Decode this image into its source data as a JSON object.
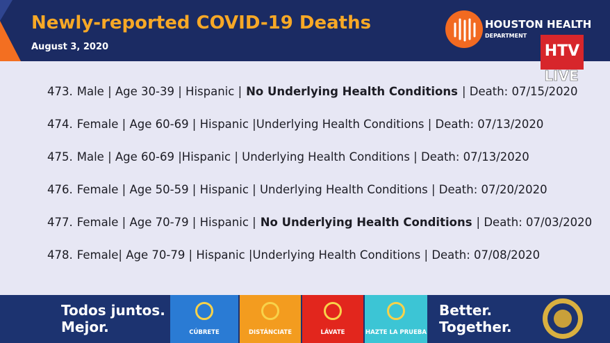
{
  "header": {
    "title": "Newly-reported COVID-19 Deaths",
    "date": "August 3, 2020",
    "logo": {
      "name": "HOUSTON HEALTH",
      "subname": "DEPARTMENT"
    },
    "broadcast": {
      "channel": "HTV",
      "status": "LIVE"
    }
  },
  "rows": [
    {
      "number": "473.",
      "segments": [
        {
          "text": "Male | Age 30-39 | Hispanic |"
        },
        {
          "text": "No Underlying Health Conditions",
          "bold": true
        },
        {
          "text": "| Death: 07/15/2020"
        }
      ]
    },
    {
      "number": "474.",
      "segments": [
        {
          "text": "Female | Age 60-69 | Hispanic |Underlying Health Conditions | Death: 07/13/2020"
        }
      ]
    },
    {
      "number": "475.",
      "segments": [
        {
          "text": "Male | Age 60-69 |Hispanic | Underlying Health Conditions | Death: 07/13/2020"
        }
      ]
    },
    {
      "number": "476.",
      "segments": [
        {
          "text": "Female | Age 50-59 | Hispanic | Underlying Health Conditions | Death: 07/20/2020"
        }
      ]
    },
    {
      "number": "477.",
      "segments": [
        {
          "text": "Female | Age 70-79 | Hispanic |"
        },
        {
          "text": "No Underlying Health Conditions",
          "bold": true
        },
        {
          "text": "| Death: 07/03/2020"
        }
      ]
    },
    {
      "number": "478.",
      "segments": [
        {
          "text": "Female| Age 70-79 | Hispanic |Underlying Health Conditions | Death: 07/08/2020"
        }
      ]
    }
  ],
  "footer": {
    "left": [
      "Todos juntos.",
      "Mejor."
    ],
    "tiles": [
      {
        "label": "CÚBRETE",
        "color": "#2a7bd4"
      },
      {
        "label": "DISTÁNCIATE",
        "color": "#f39c1f"
      },
      {
        "label": "LÁVATE",
        "color": "#e2261d"
      },
      {
        "label": "HAZTE LA PRUEBA",
        "color": "#3cc5d5"
      }
    ],
    "right": [
      "Better.",
      "Together."
    ]
  }
}
